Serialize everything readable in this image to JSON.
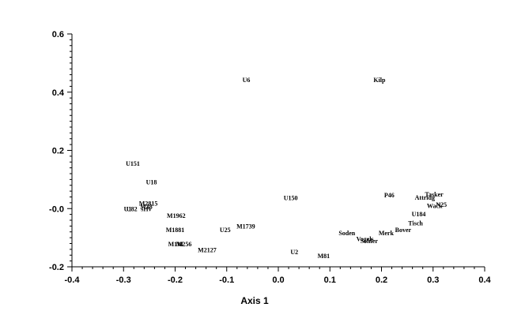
{
  "chart_data": {
    "type": "scatter",
    "xlabel": "Axis 1",
    "ylabel": "",
    "xlim": [
      -0.4,
      0.4
    ],
    "ylim": [
      -0.2,
      0.6
    ],
    "x_ticks": [
      -0.4,
      -0.3,
      -0.2,
      -0.1,
      0.0,
      0.1,
      0.2,
      0.3,
      0.4
    ],
    "x_tick_labels": [
      "-0.4",
      "-0.3",
      "-0.2",
      "-0.1",
      "0.0",
      "0.1",
      "0.2",
      "0.3",
      "0.4"
    ],
    "y_ticks": [
      -0.2,
      0.0,
      0.2,
      0.4,
      0.6
    ],
    "y_tick_labels": [
      "-0.2",
      "-0.0",
      "0.2",
      "0.4",
      "0.6"
    ],
    "grid": false,
    "points": [
      {
        "label": "U6",
        "x": -0.062,
        "y": 0.443
      },
      {
        "label": "Kilp",
        "x": 0.196,
        "y": 0.443
      },
      {
        "label": "U151",
        "x": -0.282,
        "y": 0.155
      },
      {
        "label": "U18",
        "x": -0.246,
        "y": 0.092
      },
      {
        "label": "U150",
        "x": 0.024,
        "y": 0.037
      },
      {
        "label": "P46",
        "x": 0.215,
        "y": 0.047
      },
      {
        "label": "Attridg",
        "x": 0.284,
        "y": 0.039
      },
      {
        "label": "Tasker",
        "x": 0.302,
        "y": 0.05
      },
      {
        "label": "N25",
        "x": 0.316,
        "y": 0.014
      },
      {
        "label": "Wack",
        "x": 0.303,
        "y": 0.01
      },
      {
        "label": "U184",
        "x": 0.272,
        "y": -0.018
      },
      {
        "label": "Tisch",
        "x": 0.266,
        "y": -0.05
      },
      {
        "label": "Bover",
        "x": 0.242,
        "y": -0.072
      },
      {
        "label": "Merk",
        "x": 0.209,
        "y": -0.083
      },
      {
        "label": "Soden",
        "x": 0.133,
        "y": -0.083
      },
      {
        "label": "Vogels",
        "x": 0.168,
        "y": -0.104
      },
      {
        "label": "Sohler",
        "x": 0.176,
        "y": -0.11
      },
      {
        "label": "U1",
        "x": -0.292,
        "y": -0.001
      },
      {
        "label": "U82",
        "x": -0.284,
        "y": -0.001
      },
      {
        "label": "M2815",
        "x": -0.252,
        "y": 0.018
      },
      {
        "label": "M38",
        "x": -0.256,
        "y": 0.007
      },
      {
        "label": "sHv",
        "x": -0.256,
        "y": -0.001
      },
      {
        "label": "M1962",
        "x": -0.198,
        "y": -0.024
      },
      {
        "label": "M1881",
        "x": -0.2,
        "y": -0.072
      },
      {
        "label": "M1739",
        "x": -0.063,
        "y": -0.061
      },
      {
        "label": "U25",
        "x": -0.103,
        "y": -0.072
      },
      {
        "label": "M1M",
        "x": -0.199,
        "y": -0.122
      },
      {
        "label": "M256",
        "x": -0.183,
        "y": -0.122
      },
      {
        "label": "M2127",
        "x": -0.138,
        "y": -0.142
      },
      {
        "label": "U2",
        "x": 0.031,
        "y": -0.148
      },
      {
        "label": "M81",
        "x": 0.088,
        "y": -0.162
      }
    ]
  }
}
